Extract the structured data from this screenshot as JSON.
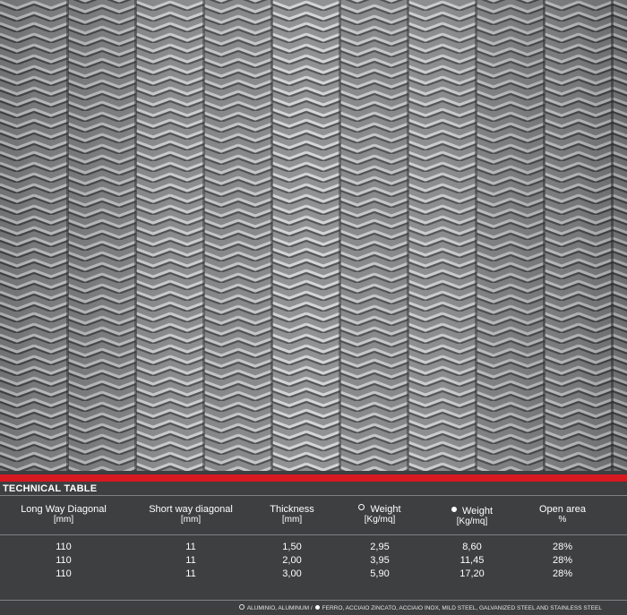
{
  "table": {
    "title": "TECHNICAL TABLE",
    "headers": [
      {
        "label": "Long Way Diagonal",
        "unit": "[mm]"
      },
      {
        "label": "Short way diagonal",
        "unit": "[mm]"
      },
      {
        "label": "Thickness",
        "unit": "[mm]"
      },
      {
        "label": "Weight",
        "unit": "[Kg/mq]",
        "marker": "open-circle"
      },
      {
        "label": "Weight",
        "unit": "[Kg/mq]",
        "marker": "filled-circle"
      },
      {
        "label": "Open area",
        "unit": "%"
      }
    ],
    "rows": [
      [
        "110",
        "11",
        "1,50",
        "2,95",
        "8,60",
        "28%"
      ],
      [
        "110",
        "11",
        "2,00",
        "3,95",
        "11,45",
        "28%"
      ],
      [
        "110",
        "11",
        "3,00",
        "5,90",
        "17,20",
        "28%"
      ]
    ]
  },
  "legend": {
    "open_text": "ALUMINIO, ALUMINUM /",
    "filled_text": "FERRO, ACCIAIO ZINCATO, ACCIAIO INOX, MILD STEEL, GALVANIZED STEEL AND STAINLESS STEEL"
  },
  "colors": {
    "accent_red": "#d71920",
    "table_background": "#3e3f41",
    "metal_gray": "#8d8e90"
  },
  "icons": {
    "open_marker": "open-circle-icon",
    "filled_marker": "filled-circle-icon"
  }
}
